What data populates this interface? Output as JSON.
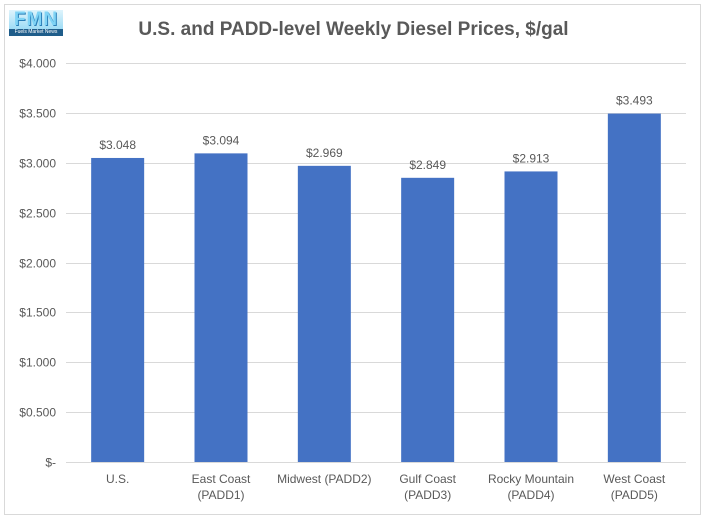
{
  "logo": {
    "letters": "FMN",
    "tagline": "Fuels Market News"
  },
  "chart_data": {
    "type": "bar",
    "title": "U.S. and PADD-level Weekly Diesel Prices, $/gal",
    "categories": [
      [
        "U.S."
      ],
      [
        "East Coast",
        "(PADD1)"
      ],
      [
        "Midwest (PADD2)"
      ],
      [
        "Gulf Coast",
        "(PADD3)"
      ],
      [
        "Rocky Mountain",
        "(PADD4)"
      ],
      [
        "West Coast",
        "(PADD5)"
      ]
    ],
    "values": [
      3.048,
      3.094,
      2.969,
      2.849,
      2.913,
      3.493
    ],
    "data_labels": [
      "$3.048",
      "$3.094",
      "$2.969",
      "$2.849",
      "$2.913",
      "$3.493"
    ],
    "ylim": [
      0,
      4.0
    ],
    "yticks": [
      0,
      0.5,
      1.0,
      1.5,
      2.0,
      2.5,
      3.0,
      3.5,
      4.0
    ],
    "ytick_labels": [
      "$-",
      "$0.500",
      "$1.000",
      "$1.500",
      "$2.000",
      "$2.500",
      "$3.000",
      "$3.500",
      "$4.000"
    ],
    "xlabel": "",
    "ylabel": "",
    "grid": true,
    "bar_color": "#4472c4",
    "grid_color": "#d9d9d9"
  }
}
